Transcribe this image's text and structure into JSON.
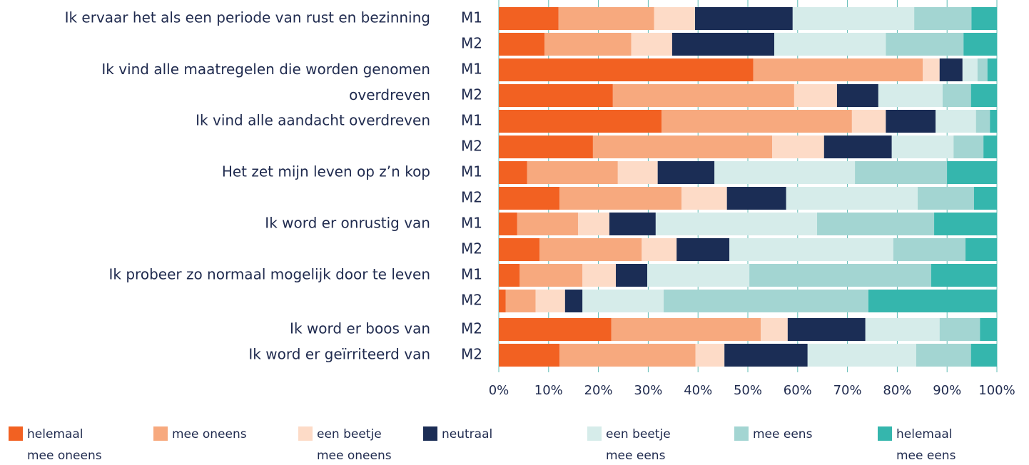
{
  "chart_data": {
    "type": "stacked-barh",
    "categories": [
      "M1",
      "M2",
      "M1",
      "M2",
      "M1",
      "M2",
      "M1",
      "M2",
      "M1",
      "M2",
      "M1",
      "M2",
      "M2",
      "M2"
    ],
    "question_labels": [
      "Ik ervaar het als een periode van rust en bezinning",
      null,
      "Ik vind alle maatregelen die worden genomen\noverdreven",
      null,
      "Ik vind alle aandacht overdreven",
      null,
      "Het zet mijn leven op z’n kop",
      null,
      "Ik word er onrustig van",
      null,
      "Ik probeer zo normaal mogelijk door te leven",
      null,
      "Ik word er boos van",
      "Ik word er geïrriteerd van"
    ],
    "series": [
      {
        "name": "helemaal\nmee oneens",
        "color": "#f26122",
        "values": [
          12.0,
          9.2,
          51.1,
          22.9,
          32.7,
          18.9,
          5.7,
          12.2,
          3.7,
          8.2,
          4.2,
          1.4,
          22.6,
          12.2
        ]
      },
      {
        "name": "mee oneens",
        "color": "#f7a97e",
        "values": [
          19.2,
          17.4,
          34.0,
          36.4,
          38.2,
          36.0,
          18.2,
          24.5,
          12.2,
          20.5,
          12.6,
          6.0,
          30.0,
          27.3
        ]
      },
      {
        "name": "een beetje\nmee oneens",
        "color": "#fddbc7",
        "values": [
          8.2,
          8.2,
          3.4,
          8.6,
          6.8,
          10.4,
          8.0,
          9.1,
          6.3,
          7.0,
          6.7,
          5.9,
          5.4,
          5.8
        ]
      },
      {
        "name": "neutraal",
        "color": "#1b2d55",
        "values": [
          19.6,
          20.5,
          4.6,
          8.3,
          10.0,
          13.6,
          11.4,
          11.9,
          9.3,
          10.6,
          6.3,
          3.5,
          15.6,
          16.7
        ]
      },
      {
        "name": "een beetje\nmee eens",
        "color": "#d6ecea",
        "values": [
          24.4,
          22.4,
          3.0,
          12.9,
          8.1,
          12.4,
          28.2,
          26.4,
          32.4,
          32.9,
          20.5,
          16.3,
          14.9,
          21.8
        ]
      },
      {
        "name": "mee eens",
        "color": "#a3d5d2",
        "values": [
          11.5,
          15.6,
          2.0,
          5.7,
          2.8,
          6.0,
          18.5,
          11.3,
          23.5,
          14.5,
          36.5,
          41.1,
          8.1,
          11.0
        ]
      },
      {
        "name": "helemaal\nmee eens",
        "color": "#35b6ad",
        "values": [
          5.1,
          6.7,
          1.9,
          5.2,
          1.4,
          2.7,
          10.0,
          4.6,
          12.6,
          6.3,
          13.2,
          25.8,
          3.4,
          5.2
        ]
      }
    ],
    "xlim": [
      0,
      100
    ],
    "xticks": [
      {
        "value": 0,
        "label": "0%"
      },
      {
        "value": 10,
        "label": "10%"
      },
      {
        "value": 20,
        "label": "20%"
      },
      {
        "value": 30,
        "label": "30%"
      },
      {
        "value": 40,
        "label": "40%"
      },
      {
        "value": 50,
        "label": "50%"
      },
      {
        "value": 60,
        "label": "60%"
      },
      {
        "value": 70,
        "label": "70%"
      },
      {
        "value": 80,
        "label": "80%"
      },
      {
        "value": 90,
        "label": "90%"
      },
      {
        "value": 100,
        "label": "100%"
      }
    ],
    "grid": true
  }
}
